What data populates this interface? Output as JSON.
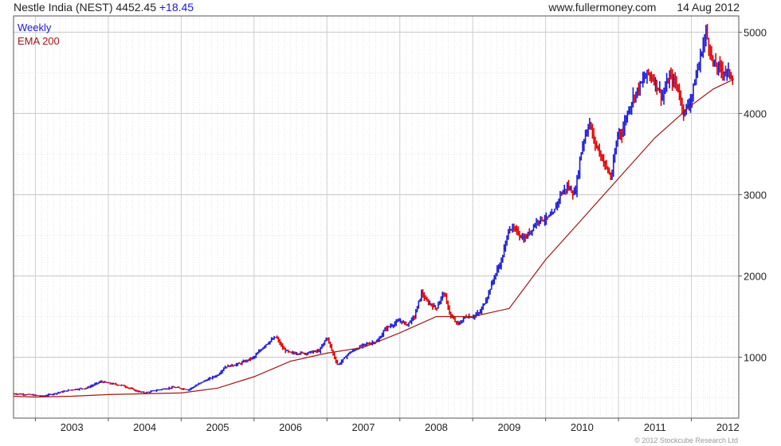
{
  "header": {
    "title": "Nestle India (NEST) 4452.45",
    "change": "+18.45",
    "site": "www.fullermoney.com",
    "date": "14 Aug 2012"
  },
  "legend": {
    "weekly": "Weekly",
    "ema": "EMA 200"
  },
  "copyright": "© 2012 Stockcube Research Ltd",
  "colors": {
    "up": "#1a1ad8",
    "down": "#e00000",
    "ema": "#a31515",
    "grid": "#cfcfcf"
  },
  "chart_data": {
    "type": "line",
    "title": "Nestle India (NEST)",
    "frequency": "Weekly",
    "x_ticks": [
      "2003",
      "2004",
      "2005",
      "2006",
      "2007",
      "2008",
      "2009",
      "2010",
      "2011",
      "2012"
    ],
    "y_ticks": [
      1000,
      2000,
      3000,
      4000,
      5000
    ],
    "ylim": [
      250,
      5200
    ],
    "xlim": [
      2002.7,
      2012.65
    ],
    "y_axis_side": "right",
    "series": [
      {
        "name": "Weekly",
        "x": [
          2002.7,
          2002.9,
          2003.1,
          2003.3,
          2003.5,
          2003.7,
          2003.9,
          2004.0,
          2004.2,
          2004.4,
          2004.5,
          2004.7,
          2004.9,
          2005.1,
          2005.3,
          2005.5,
          2005.6,
          2005.8,
          2006.0,
          2006.15,
          2006.3,
          2006.4,
          2006.5,
          2006.7,
          2006.9,
          2007.0,
          2007.1,
          2007.15,
          2007.3,
          2007.5,
          2007.7,
          2007.8,
          2007.9,
          2008.0,
          2008.1,
          2008.2,
          2008.3,
          2008.35,
          2008.5,
          2008.6,
          2008.7,
          2008.8,
          2008.9,
          2009.0,
          2009.1,
          2009.2,
          2009.3,
          2009.4,
          2009.5,
          2009.6,
          2009.7,
          2009.75,
          2009.9,
          2010.0,
          2010.1,
          2010.2,
          2010.3,
          2010.4,
          2010.5,
          2010.6,
          2010.65,
          2010.8,
          2010.9,
          2010.95,
          2011.0,
          2011.05,
          2011.1,
          2011.2,
          2011.3,
          2011.4,
          2011.5,
          2011.6,
          2011.7,
          2011.8,
          2011.9,
          2012.0,
          2012.1,
          2012.2,
          2012.25,
          2012.3,
          2012.4,
          2012.5,
          2012.58
        ],
        "values": [
          550,
          540,
          520,
          560,
          600,
          620,
          700,
          680,
          650,
          580,
          560,
          600,
          630,
          600,
          700,
          780,
          880,
          920,
          1000,
          1150,
          1250,
          1100,
          1050,
          1050,
          1080,
          1250,
          1000,
          900,
          1050,
          1150,
          1200,
          1350,
          1400,
          1450,
          1400,
          1500,
          1800,
          1700,
          1600,
          1800,
          1500,
          1400,
          1500,
          1500,
          1550,
          1750,
          2000,
          2200,
          2600,
          2550,
          2450,
          2500,
          2700,
          2700,
          2750,
          3000,
          3100,
          3000,
          3600,
          3900,
          3700,
          3400,
          3200,
          3500,
          3800,
          3750,
          3950,
          4200,
          4350,
          4500,
          4400,
          4200,
          4450,
          4350,
          4000,
          4200,
          4600,
          5000,
          4800,
          4600,
          4550,
          4500,
          4452
        ]
      },
      {
        "name": "EMA 200",
        "x": [
          2002.7,
          2003.0,
          2003.5,
          2004.0,
          2004.5,
          2005.0,
          2005.5,
          2006.0,
          2006.5,
          2007.0,
          2007.5,
          2008.0,
          2008.5,
          2009.0,
          2009.5,
          2010.0,
          2010.5,
          2011.0,
          2011.5,
          2012.0,
          2012.3,
          2012.58
        ],
        "values": [
          520,
          510,
          520,
          540,
          550,
          560,
          620,
          760,
          950,
          1050,
          1120,
          1300,
          1500,
          1500,
          1600,
          2200,
          2700,
          3200,
          3700,
          4100,
          4300,
          4420
        ]
      }
    ]
  }
}
